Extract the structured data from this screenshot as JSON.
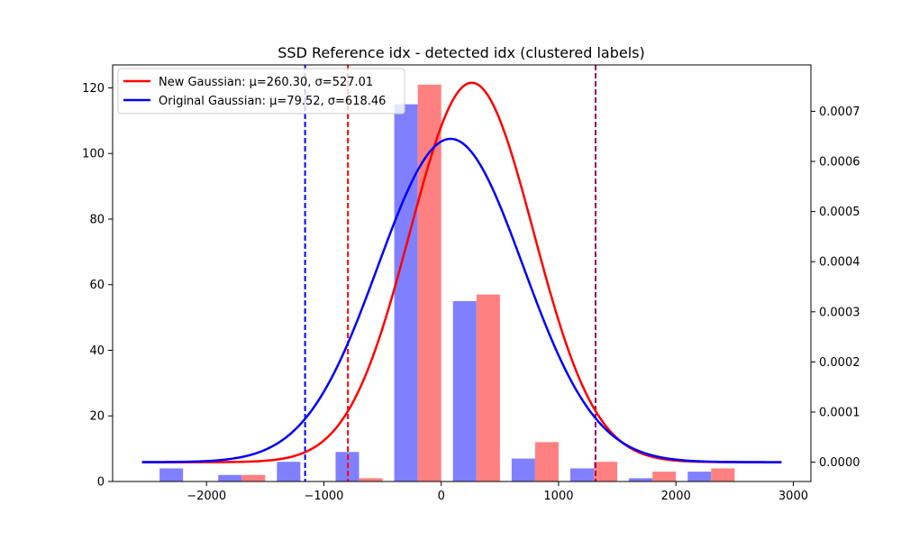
{
  "chart_data": {
    "type": "bar",
    "title": "SSD Reference idx - detected idx (clustered labels)",
    "x_axis": {
      "range": [
        -2800,
        3150
      ],
      "ticks": [
        -2000,
        -1000,
        0,
        1000,
        2000,
        3000
      ],
      "tick_labels": [
        "−2000",
        "−1000",
        "0",
        "1000",
        "2000",
        "3000"
      ]
    },
    "y_left": {
      "range": [
        0,
        127
      ],
      "ticks": [
        0,
        20,
        40,
        60,
        80,
        100,
        120
      ],
      "tick_labels": [
        "0",
        "20",
        "40",
        "60",
        "80",
        "100",
        "120"
      ]
    },
    "y_right": {
      "range": [
        -3.85e-05,
        0.0007925
      ],
      "ticks": [
        0.0,
        0.0001,
        0.0002,
        0.0003,
        0.0004,
        0.0005,
        0.0006,
        0.0007
      ],
      "tick_labels": [
        "0.0000",
        "0.0001",
        "0.0002",
        "0.0003",
        "0.0004",
        "0.0005",
        "0.0006",
        "0.0007"
      ]
    },
    "bar_groups": [
      {
        "center": -2200,
        "original": 4,
        "new": 0
      },
      {
        "center": -1700,
        "original": 2,
        "new": 2
      },
      {
        "center": -1200,
        "original": 6,
        "new": 0
      },
      {
        "center": -700,
        "original": 9,
        "new": 1
      },
      {
        "center": -200,
        "original": 115,
        "new": 121
      },
      {
        "center": 300,
        "original": 55,
        "new": 57
      },
      {
        "center": 800,
        "original": 7,
        "new": 12
      },
      {
        "center": 1300,
        "original": 4,
        "new": 6
      },
      {
        "center": 1800,
        "original": 1,
        "new": 3
      },
      {
        "center": 2300,
        "original": 3,
        "new": 4
      }
    ],
    "bar_width": 200,
    "series": [
      {
        "name": "New Gaussian: μ=260.30, σ=527.01",
        "color": "#ff0000",
        "mu": 260.3,
        "sigma": 527.01
      },
      {
        "name": "Original Gaussian: μ=79.52, σ=618.46",
        "color": "#0000ff",
        "mu": 79.52,
        "sigma": 618.46
      }
    ],
    "curve_x_range": [
      -2550,
      2900
    ],
    "vertical_lines": [
      {
        "x": -1160,
        "color": "#0000ff",
        "style": "dashed"
      },
      {
        "x": -795,
        "color": "#ff0000",
        "style": "dashed"
      },
      {
        "x": 1315,
        "color": "#0000ff",
        "style": "dashed"
      },
      {
        "x": 1315,
        "color": "#ff0000",
        "style": "dashed"
      }
    ],
    "bar_colors": {
      "original": "#8080ff",
      "new": "#ff8080"
    },
    "legend_position": "top-left",
    "grid": false
  }
}
